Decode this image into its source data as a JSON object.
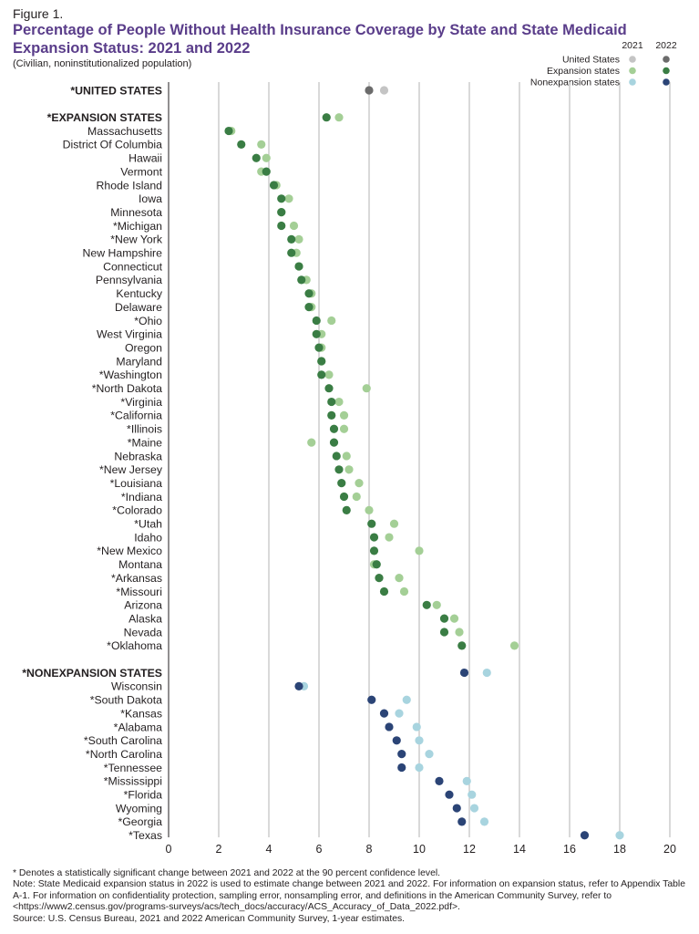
{
  "figure_label": "Figure 1.",
  "title": "Percentage of People Without Health Insurance Coverage by State and State Medicaid Expansion Status: 2021 and 2022",
  "subtitle": "(Civilian, noninstitutionalized population)",
  "legend": {
    "year_2021": "2021",
    "year_2022": "2022",
    "items": [
      {
        "label": "United States",
        "color_2021": "#c4c4c4",
        "color_2022": "#6b6b6b"
      },
      {
        "label": "Expansion states",
        "color_2021": "#a4cf96",
        "color_2022": "#3a7d44"
      },
      {
        "label": "Nonexpansion states",
        "color_2021": "#a8d4df",
        "color_2022": "#2b4476"
      }
    ]
  },
  "chart_data": {
    "type": "dot",
    "x_axis": {
      "min": 0,
      "max": 20,
      "ticks": [
        0,
        2,
        4,
        6,
        8,
        10,
        12,
        14,
        16,
        18,
        20
      ]
    },
    "grid": "vertical",
    "legend_position": "top-right",
    "series_names": [
      "2021",
      "2022"
    ],
    "rows": [
      {
        "label": "*UNITED STATES",
        "group_header": true,
        "group": "us",
        "v2021": 8.6,
        "v2022": 8.0
      },
      {
        "label": "*EXPANSION STATES",
        "group_header": true,
        "group": "exp",
        "v2021": 6.8,
        "v2022": 6.3
      },
      {
        "label": "Massachusetts",
        "group": "exp",
        "v2021": 2.5,
        "v2022": 2.4
      },
      {
        "label": "District Of Columbia",
        "group": "exp",
        "v2021": 3.7,
        "v2022": 2.9
      },
      {
        "label": "Hawaii",
        "group": "exp",
        "v2021": 3.9,
        "v2022": 3.5
      },
      {
        "label": "Vermont",
        "group": "exp",
        "v2021": 3.7,
        "v2022": 3.9
      },
      {
        "label": "Rhode Island",
        "group": "exp",
        "v2021": 4.3,
        "v2022": 4.2
      },
      {
        "label": "Iowa",
        "group": "exp",
        "v2021": 4.8,
        "v2022": 4.5
      },
      {
        "label": "Minnesota",
        "group": "exp",
        "v2021": 4.5,
        "v2022": 4.5
      },
      {
        "label": "*Michigan",
        "group": "exp",
        "v2021": 5.0,
        "v2022": 4.5
      },
      {
        "label": "*New York",
        "group": "exp",
        "v2021": 5.2,
        "v2022": 4.9
      },
      {
        "label": "New Hampshire",
        "group": "exp",
        "v2021": 5.1,
        "v2022": 4.9
      },
      {
        "label": "Connecticut",
        "group": "exp",
        "v2021": 5.2,
        "v2022": 5.2
      },
      {
        "label": "Pennsylvania",
        "group": "exp",
        "v2021": 5.5,
        "v2022": 5.3
      },
      {
        "label": "Kentucky",
        "group": "exp",
        "v2021": 5.7,
        "v2022": 5.6
      },
      {
        "label": "Delaware",
        "group": "exp",
        "v2021": 5.7,
        "v2022": 5.6
      },
      {
        "label": "*Ohio",
        "group": "exp",
        "v2021": 6.5,
        "v2022": 5.9
      },
      {
        "label": "West Virginia",
        "group": "exp",
        "v2021": 6.1,
        "v2022": 5.9
      },
      {
        "label": "Oregon",
        "group": "exp",
        "v2021": 6.1,
        "v2022": 6.0
      },
      {
        "label": "Maryland",
        "group": "exp",
        "v2021": 6.1,
        "v2022": 6.1
      },
      {
        "label": "*Washington",
        "group": "exp",
        "v2021": 6.4,
        "v2022": 6.1
      },
      {
        "label": "*North Dakota",
        "group": "exp",
        "v2021": 7.9,
        "v2022": 6.4
      },
      {
        "label": "*Virginia",
        "group": "exp",
        "v2021": 6.8,
        "v2022": 6.5
      },
      {
        "label": "*California",
        "group": "exp",
        "v2021": 7.0,
        "v2022": 6.5
      },
      {
        "label": "*Illinois",
        "group": "exp",
        "v2021": 7.0,
        "v2022": 6.6
      },
      {
        "label": "*Maine",
        "group": "exp",
        "v2021": 5.7,
        "v2022": 6.6
      },
      {
        "label": "Nebraska",
        "group": "exp",
        "v2021": 7.1,
        "v2022": 6.7
      },
      {
        "label": "*New Jersey",
        "group": "exp",
        "v2021": 7.2,
        "v2022": 6.8
      },
      {
        "label": "*Louisiana",
        "group": "exp",
        "v2021": 7.6,
        "v2022": 6.9
      },
      {
        "label": "*Indiana",
        "group": "exp",
        "v2021": 7.5,
        "v2022": 7.0
      },
      {
        "label": "*Colorado",
        "group": "exp",
        "v2021": 8.0,
        "v2022": 7.1
      },
      {
        "label": "*Utah",
        "group": "exp",
        "v2021": 9.0,
        "v2022": 8.1
      },
      {
        "label": "Idaho",
        "group": "exp",
        "v2021": 8.8,
        "v2022": 8.2
      },
      {
        "label": "*New Mexico",
        "group": "exp",
        "v2021": 10.0,
        "v2022": 8.2
      },
      {
        "label": "Montana",
        "group": "exp",
        "v2021": 8.2,
        "v2022": 8.3
      },
      {
        "label": "*Arkansas",
        "group": "exp",
        "v2021": 9.2,
        "v2022": 8.4
      },
      {
        "label": "*Missouri",
        "group": "exp",
        "v2021": 9.4,
        "v2022": 8.6
      },
      {
        "label": "Arizona",
        "group": "exp",
        "v2021": 10.7,
        "v2022": 10.3
      },
      {
        "label": "Alaska",
        "group": "exp",
        "v2021": 11.4,
        "v2022": 11.0
      },
      {
        "label": "Nevada",
        "group": "exp",
        "v2021": 11.6,
        "v2022": 11.0
      },
      {
        "label": "*Oklahoma",
        "group": "exp",
        "v2021": 13.8,
        "v2022": 11.7
      },
      {
        "label": "*NONEXPANSION STATES",
        "group_header": true,
        "group": "non",
        "v2021": 12.7,
        "v2022": 11.8
      },
      {
        "label": "Wisconsin",
        "group": "non",
        "v2021": 5.4,
        "v2022": 5.2
      },
      {
        "label": "*South Dakota",
        "group": "non",
        "v2021": 9.5,
        "v2022": 8.1
      },
      {
        "label": "*Kansas",
        "group": "non",
        "v2021": 9.2,
        "v2022": 8.6
      },
      {
        "label": "*Alabama",
        "group": "non",
        "v2021": 9.9,
        "v2022": 8.8
      },
      {
        "label": "*South Carolina",
        "group": "non",
        "v2021": 10.0,
        "v2022": 9.1
      },
      {
        "label": "*North Carolina",
        "group": "non",
        "v2021": 10.4,
        "v2022": 9.3
      },
      {
        "label": "*Tennessee",
        "group": "non",
        "v2021": 10.0,
        "v2022": 9.3
      },
      {
        "label": "*Mississippi",
        "group": "non",
        "v2021": 11.9,
        "v2022": 10.8
      },
      {
        "label": "*Florida",
        "group": "non",
        "v2021": 12.1,
        "v2022": 11.2
      },
      {
        "label": "Wyoming",
        "group": "non",
        "v2021": 12.2,
        "v2022": 11.5
      },
      {
        "label": "*Georgia",
        "group": "non",
        "v2021": 12.6,
        "v2022": 11.7
      },
      {
        "label": "*Texas",
        "group": "non",
        "v2021": 18.0,
        "v2022": 16.6
      }
    ]
  },
  "footnotes": [
    "* Denotes a statistically significant change between 2021 and 2022 at the 90 percent confidence level.",
    "Note: State Medicaid expansion status in 2022 is used to estimate change between 2021 and 2022. For information on expansion status, refer to Appendix Table A-1. For information on confidentiality protection, sampling error, nonsampling error, and definitions in the American Community Survey, refer to <https://www2.census.gov/programs-surveys/acs/tech_docs/accuracy/ACS_Accuracy_of_Data_2022.pdf>.",
    "Source: U.S. Census Bureau, 2021 and 2022 American Community Survey, 1-year estimates."
  ]
}
